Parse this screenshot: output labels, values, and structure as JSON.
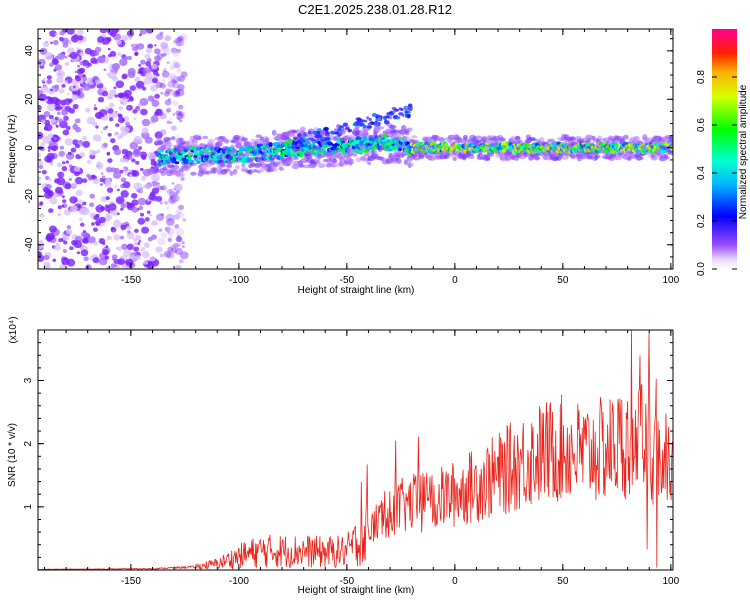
{
  "title": "C2E1.2025.238.01.28.R12",
  "chart_data": [
    {
      "type": "heatmap",
      "xlabel": "Height of straight line (km)",
      "ylabel": "Frequency (Hz)",
      "xlim": [
        -193,
        101
      ],
      "ylim": [
        -50,
        49
      ],
      "xticks": [
        -150,
        -100,
        -50,
        0,
        50,
        100
      ],
      "yticks": [
        -40,
        -20,
        0,
        20,
        40
      ],
      "colorbar": {
        "label": "Normalized spectral amplitude",
        "ticks": [
          0.0,
          0.2,
          0.4,
          0.6,
          0.8
        ],
        "range": [
          0,
          1
        ],
        "tick_labels": [
          "0.0",
          "0.2",
          "0.4",
          "0.6",
          "0.8"
        ]
      },
      "ridge": {
        "x": [
          -137,
          -125,
          -110,
          -100,
          -90,
          -80,
          -70,
          -60,
          -50,
          -40,
          -30,
          -20,
          -10,
          0,
          10,
          20,
          30,
          40,
          50,
          60,
          70,
          80,
          90,
          100
        ],
        "center_hz": [
          -4,
          -3,
          -3,
          -3,
          -2,
          -1,
          0,
          0,
          1,
          1,
          2,
          0,
          0,
          0,
          0,
          0,
          0,
          0,
          0,
          0,
          0,
          0,
          0,
          0
        ]
      },
      "noise_region_x": [
        -193,
        -125
      ],
      "noise_cutoff_x": -137
    },
    {
      "type": "line",
      "xlabel": "Height of straight line (km)",
      "ylabel": "SNR (10 * v/v)",
      "yscale_label": "(x10⁴)",
      "xlim": [
        -193,
        101
      ],
      "ylim": [
        0,
        3.8
      ],
      "xticks": [
        -150,
        -100,
        -50,
        0,
        50,
        100
      ],
      "yticks": [
        1,
        2,
        3
      ],
      "color": "#e8241c",
      "envelope": {
        "x": [
          -193,
          -140,
          -120,
          -110,
          -100,
          -90,
          -80,
          -70,
          -60,
          -50,
          -45,
          -40,
          -35,
          -30,
          -20,
          -10,
          0,
          10,
          20,
          30,
          40,
          50,
          60,
          70,
          80,
          85,
          90,
          95,
          101
        ],
        "y": [
          0.01,
          0.02,
          0.05,
          0.1,
          0.22,
          0.3,
          0.3,
          0.3,
          0.28,
          0.3,
          0.45,
          0.6,
          0.8,
          0.95,
          1.05,
          1.1,
          1.2,
          1.35,
          1.5,
          1.7,
          1.85,
          1.92,
          1.85,
          1.9,
          2.05,
          2.1,
          1.9,
          1.8,
          1.6
        ]
      }
    }
  ]
}
